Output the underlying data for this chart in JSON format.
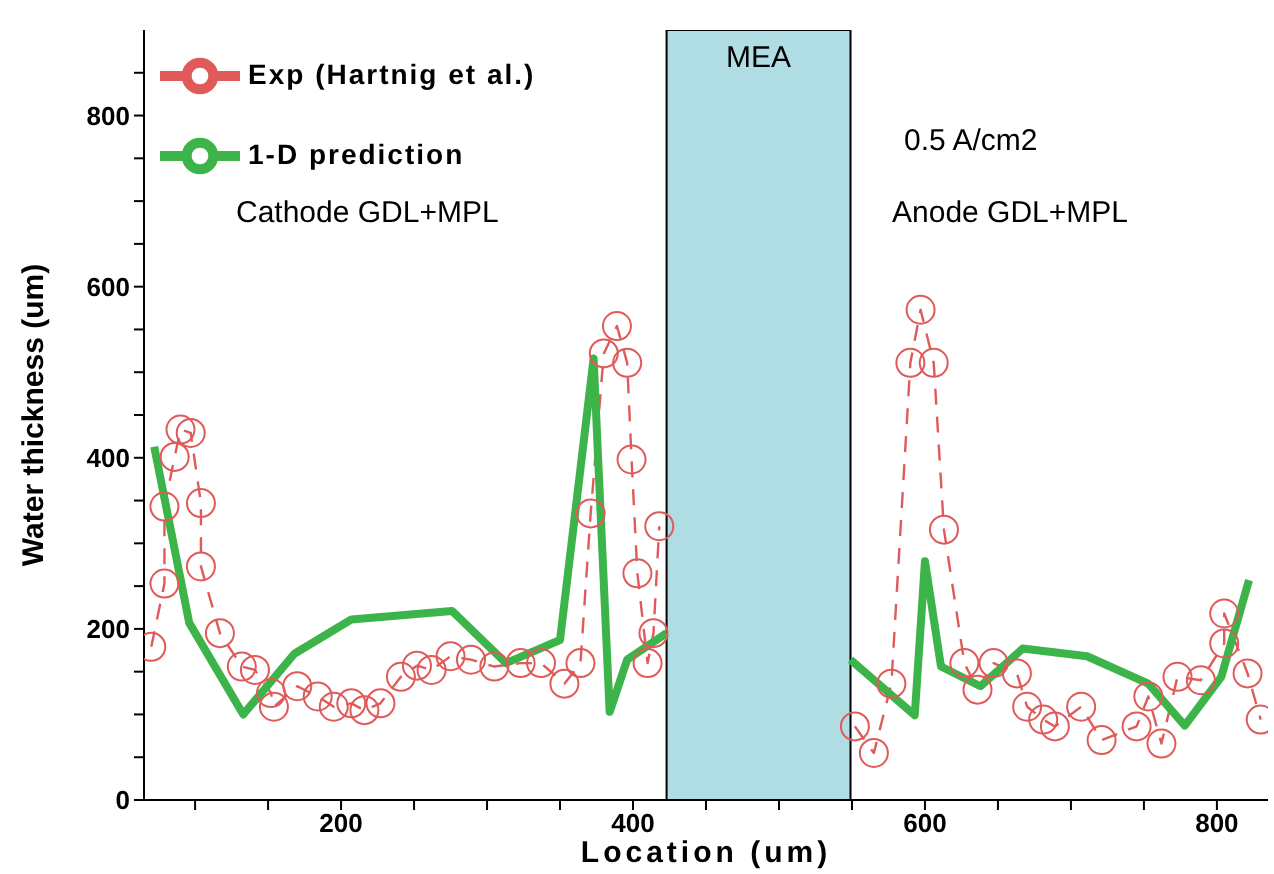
{
  "chart_data": {
    "type": "line",
    "xlabel": "Location (um)",
    "ylabel": "Water thickness (um)",
    "xlim": [
      65,
      835
    ],
    "ylim": [
      0,
      900
    ],
    "xticks": [
      {
        "value": 100,
        "label": null
      },
      {
        "value": 150,
        "label": null
      },
      200,
      {
        "value": 250,
        "label": null
      },
      {
        "value": 300,
        "label": null
      },
      {
        "value": 350,
        "label": null
      },
      400,
      {
        "value": 450,
        "label": null
      },
      {
        "value": 500,
        "label": null
      },
      {
        "value": 550,
        "label": null
      },
      600,
      {
        "value": 650,
        "label": null
      },
      {
        "value": 700,
        "label": null
      },
      {
        "value": 750,
        "label": null
      },
      800
    ],
    "yticks": [
      0,
      {
        "value": 50,
        "label": null
      },
      {
        "value": 100,
        "label": null
      },
      {
        "value": 150,
        "label": null
      },
      200,
      {
        "value": 250,
        "label": null
      },
      {
        "value": 300,
        "label": null
      },
      {
        "value": 350,
        "label": null
      },
      400,
      {
        "value": 450,
        "label": null
      },
      {
        "value": 500,
        "label": null
      },
      {
        "value": 550,
        "label": null
      },
      600,
      {
        "value": 650,
        "label": null
      },
      {
        "value": 700,
        "label": null
      },
      {
        "value": 750,
        "label": null
      },
      800,
      {
        "value": 850,
        "label": null
      }
    ],
    "legend": "top left",
    "grid": false,
    "series": [
      {
        "name": "Exp (Hartnig et al.)",
        "color": "#e05a5a",
        "marker": "circle",
        "line_style": "dashed",
        "x": [
          70,
          79,
          79,
          86,
          90,
          97,
          104,
          104,
          117,
          132,
          141,
          152,
          154,
          170,
          184,
          195,
          207,
          216,
          227,
          241,
          252,
          262,
          275,
          289,
          305,
          323,
          337,
          353,
          364,
          371,
          380,
          389,
          396,
          399,
          403,
          410,
          414,
          418,
          485,
          552,
          565,
          577,
          590,
          597,
          606,
          613,
          627,
          636,
          647,
          663,
          670,
          681,
          689,
          707,
          721,
          745,
          753,
          762,
          773,
          789,
          805,
          805,
          821,
          830
        ],
        "values": [
          179,
          253,
          343,
          401,
          433,
          429,
          347,
          273,
          195,
          156,
          152,
          125,
          109,
          133,
          121,
          109,
          113,
          105,
          113,
          144,
          157,
          152,
          168,
          164,
          156,
          160,
          160,
          136,
          160,
          335,
          522,
          554,
          511,
          398,
          265,
          160,
          195,
          320,
          null,
          86,
          55,
          136,
          511,
          573,
          511,
          316,
          160,
          129,
          160,
          148,
          109,
          94,
          86,
          109,
          70,
          86,
          121,
          66,
          144,
          140,
          183,
          218,
          148,
          94
        ]
      },
      {
        "name": "1-D prediction",
        "color": "#3cb44a",
        "marker": "none",
        "line_style": "solid",
        "x": [
          72,
          96,
          133,
          168,
          207,
          276,
          313,
          350,
          373,
          384,
          396,
          423,
          486,
          549,
          593,
          600,
          611,
          638,
          667,
          711,
          753,
          778,
          803,
          822
        ],
        "values": [
          413,
          207,
          100,
          171,
          211,
          221,
          160,
          187,
          516,
          103,
          164,
          195,
          null,
          164,
          99,
          279,
          156,
          133,
          177,
          168,
          136,
          87,
          144,
          257
        ]
      }
    ],
    "bands": [
      {
        "axis": "x",
        "from": 423,
        "to": 549,
        "label": "MEA",
        "color": "#b0dde3"
      }
    ],
    "annotations": [
      "Cathode GDL+MPL",
      "0.5 A/cm2",
      "Anode GDL+MPL"
    ]
  }
}
